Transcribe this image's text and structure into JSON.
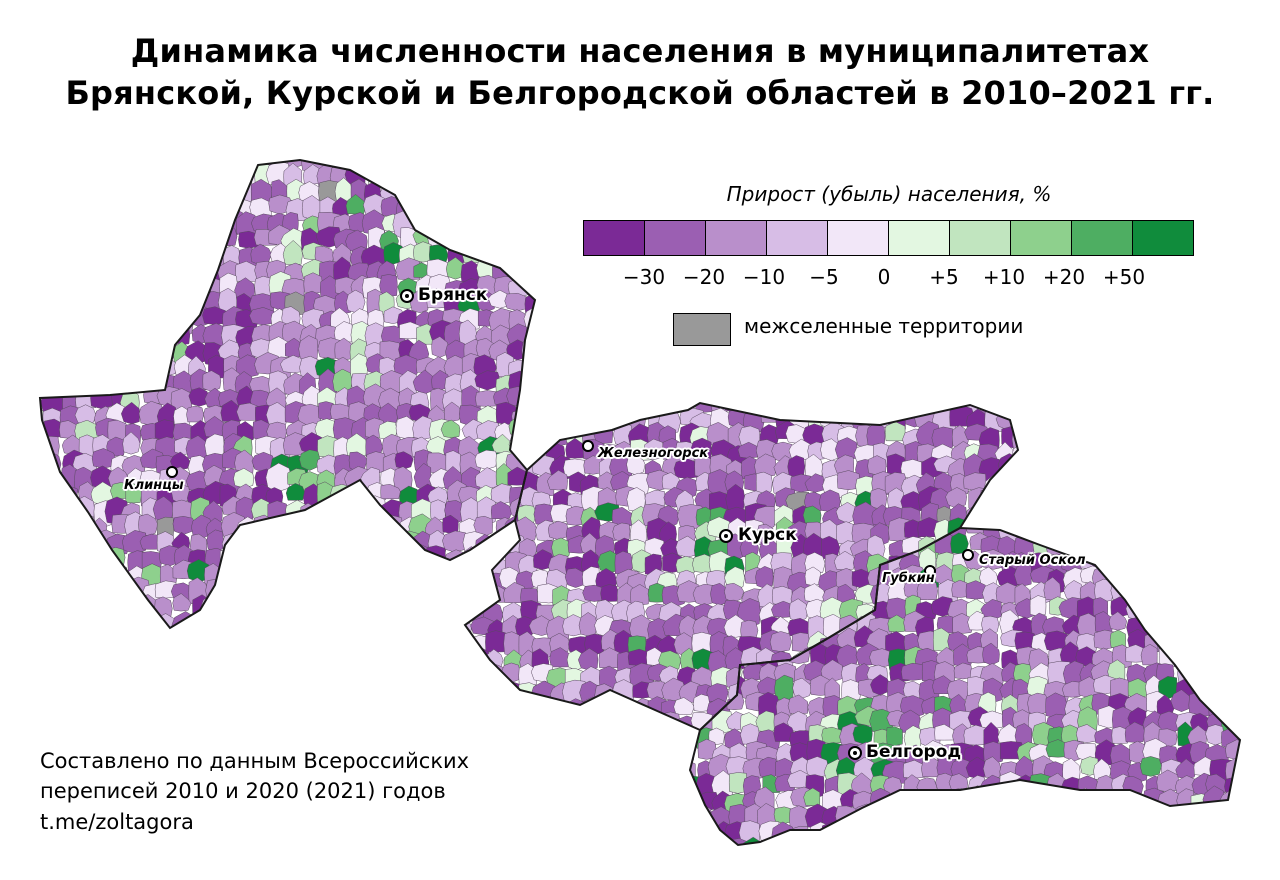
{
  "title": {
    "line1": "Динамика численности населения в муниципалитетах",
    "line2": "Брянской, Курской и Белгородской областей в 2010–2021 гг."
  },
  "legend": {
    "title": "Прирост (убыль) населения, %",
    "colors": [
      "#7b2a96",
      "#9b5fb2",
      "#b98fcb",
      "#d7bde6",
      "#f2e7f8",
      "#e3f7e1",
      "#c1e5bf",
      "#8ed08d",
      "#4eae62",
      "#108c3c"
    ],
    "ticks": [
      "−30",
      "−20",
      "−10",
      "−5",
      "0",
      "+5",
      "+10",
      "+20",
      "+50"
    ],
    "unpopulated_label": "межселенные территории",
    "unpopulated_color": "#999999"
  },
  "cities": {
    "bryansk": "Брянск",
    "klintsy": "Клинцы",
    "zheleznogorsk": "Железногорск",
    "kursk": "Курск",
    "gubkin": "Губкин",
    "stary_oskol": "Старый Оскол",
    "belgorod": "Белгород"
  },
  "source": {
    "line1": "Составлено по данным Всероссийских",
    "line2": "переписей 2010 и 2020 (2021) годов",
    "line3": "t.me/zoltagora"
  }
}
